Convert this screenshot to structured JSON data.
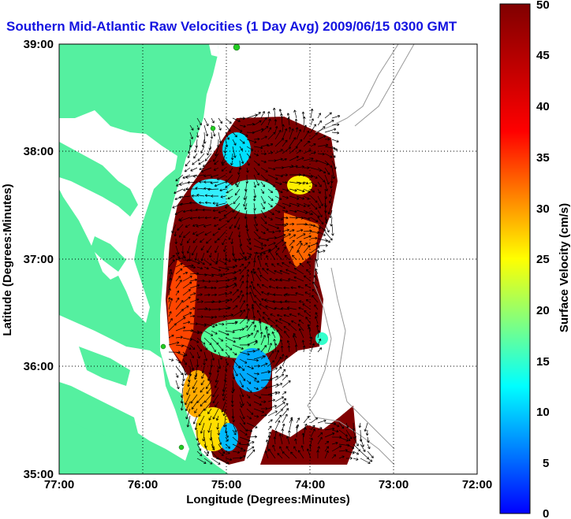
{
  "title": "Southern Mid-Atlantic Raw Velocities (1 Day Avg) 2009/06/15 0300 GMT",
  "x_axis": {
    "label": "Longitude (Degrees:Minutes)",
    "ticks": [
      "77:00",
      "76:00",
      "75:00",
      "74:00",
      "73:00",
      "72:00"
    ],
    "range": [
      -77,
      -72
    ]
  },
  "y_axis": {
    "label": "Latitude (Degrees:Minutes)",
    "ticks": [
      "39:00",
      "38:00",
      "37:00",
      "36:00",
      "35:00"
    ],
    "range": [
      35,
      39
    ]
  },
  "colorbar": {
    "label": "Surface Velocity (cm/s)",
    "ticks": [
      "50",
      "45",
      "40",
      "35",
      "30",
      "25",
      "20",
      "15",
      "10",
      "5",
      "0"
    ],
    "range": [
      0,
      50
    ]
  },
  "colors": {
    "land": "#55f0a0",
    "ocean": "#ffffff",
    "title": "#1414e0",
    "grid": "#000000",
    "station": "#22cc22"
  }
}
